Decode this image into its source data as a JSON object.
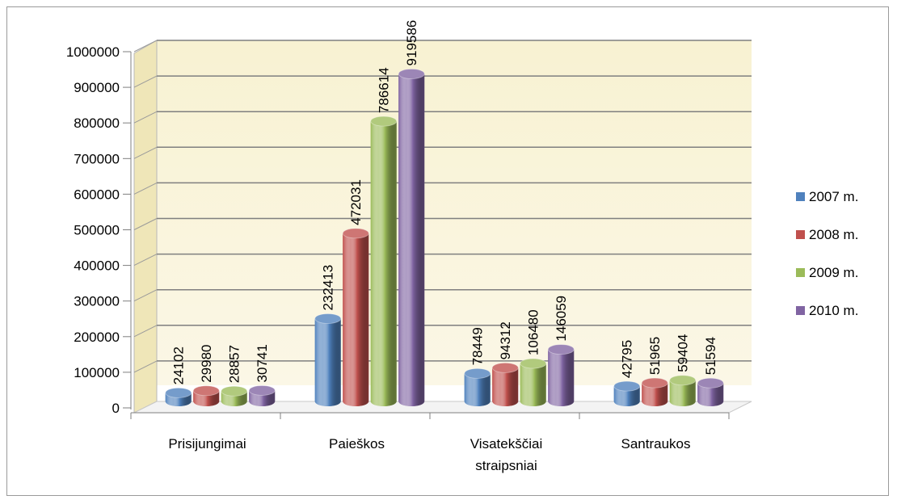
{
  "chart_data": {
    "type": "bar",
    "style": "3d-cylinder",
    "title": "",
    "xlabel": "",
    "ylabel": "",
    "categories": [
      "Prisijungimai",
      "Paieškos",
      "Visatekščiai straipsniai",
      "Santraukos"
    ],
    "category_lines": [
      [
        "Prisijungimai"
      ],
      [
        "Paieškos"
      ],
      [
        "Visatekščiai",
        "straipsniai"
      ],
      [
        "Santraukos"
      ]
    ],
    "series": [
      {
        "name": "2007 m.",
        "color": "#4f81bd",
        "values": [
          24102,
          232413,
          78449,
          42795
        ]
      },
      {
        "name": "2008 m.",
        "color": "#c0504d",
        "values": [
          29980,
          472031,
          94312,
          51965
        ]
      },
      {
        "name": "2009 m.",
        "color": "#9bbb59",
        "values": [
          28857,
          786614,
          106480,
          59404
        ]
      },
      {
        "name": "2010 m.",
        "color": "#8064a2",
        "values": [
          30741,
          919586,
          146059,
          51594
        ]
      }
    ],
    "ylim": [
      0,
      1000000
    ],
    "yticks": [
      0,
      100000,
      200000,
      300000,
      400000,
      500000,
      600000,
      700000,
      800000,
      900000,
      1000000
    ],
    "grid": true,
    "background_wall_color": "#f7f0c8",
    "legend_position": "right",
    "data_labels": "vertical-above-bars"
  }
}
